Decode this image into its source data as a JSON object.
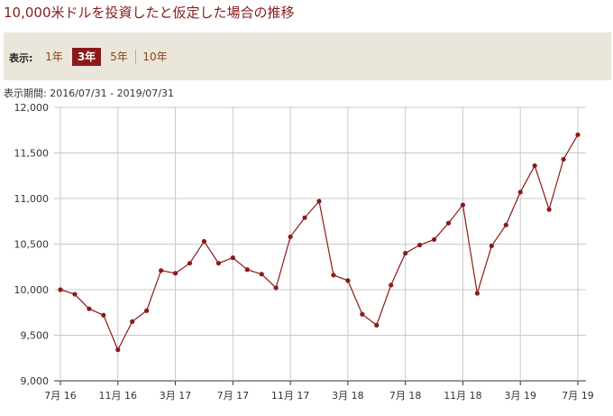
{
  "title": "10,000米ドルを投資したと仮定した場合の推移",
  "controls": {
    "label": "表示:",
    "options": [
      "1年",
      "3年",
      "5年",
      "10年"
    ],
    "selected": "3年"
  },
  "period": {
    "label": "表示期間:",
    "value": "2016/07/31 - 2019/07/31"
  },
  "colors": {
    "series": "#8b1a1a",
    "accent": "#8b1a1a",
    "panel": "#ebe6dc"
  },
  "chart_data": {
    "type": "line",
    "title": "",
    "xlabel": "",
    "ylabel": "",
    "ylim": [
      9000,
      12000
    ],
    "yticks": [
      9000,
      9500,
      10000,
      10500,
      11000,
      11500,
      12000
    ],
    "ytick_labels": [
      "9,000",
      "9,500",
      "10,000",
      "10,500",
      "11,000",
      "11,500",
      "12,000"
    ],
    "x": [
      "2016-07",
      "2016-08",
      "2016-09",
      "2016-10",
      "2016-11",
      "2016-12",
      "2017-01",
      "2017-02",
      "2017-03",
      "2017-04",
      "2017-05",
      "2017-06",
      "2017-07",
      "2017-08",
      "2017-09",
      "2017-10",
      "2017-11",
      "2017-12",
      "2018-01",
      "2018-02",
      "2018-03",
      "2018-04",
      "2018-05",
      "2018-06",
      "2018-07",
      "2018-08",
      "2018-09",
      "2018-10",
      "2018-11",
      "2018-12",
      "2019-01",
      "2019-02",
      "2019-03",
      "2019-04",
      "2019-05",
      "2019-06",
      "2019-07"
    ],
    "xtick_labels": [
      "7月 16",
      "11月 16",
      "3月 17",
      "7月 17",
      "11月 17",
      "3月 18",
      "7月 18",
      "11月 18",
      "3月 19",
      "7月 19"
    ],
    "grid": true,
    "series": [
      {
        "values": [
          10000,
          9950,
          9790,
          9720,
          9340,
          9650,
          9770,
          10210,
          10180,
          10290,
          10530,
          10290,
          10350,
          10220,
          10170,
          10020,
          10580,
          10790,
          10970,
          10160,
          10100,
          9730,
          9610,
          10050,
          10400,
          10490,
          10550,
          10730,
          10930,
          9960,
          10480,
          10710,
          11070,
          11360,
          10880,
          11430,
          11700
        ]
      }
    ]
  }
}
